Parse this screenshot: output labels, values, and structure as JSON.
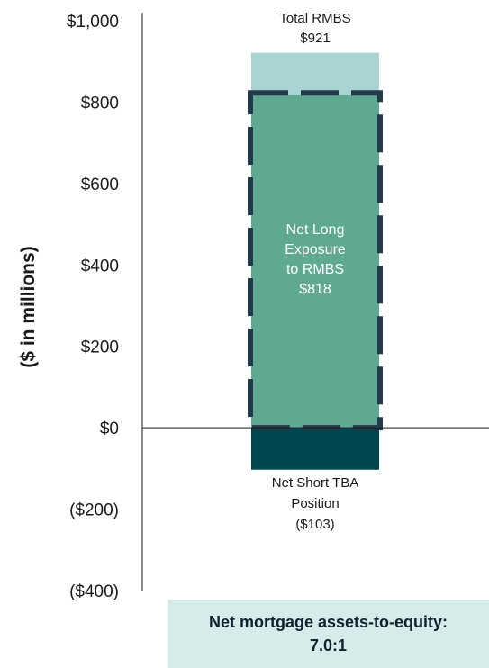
{
  "chart_data": {
    "type": "bar",
    "ylabel": "($ in millions)",
    "ylim": [
      -400,
      1000
    ],
    "yticks": [
      {
        "value": 1000,
        "label": "$1,000"
      },
      {
        "value": 800,
        "label": "$800"
      },
      {
        "value": 600,
        "label": "$600"
      },
      {
        "value": 400,
        "label": "$400"
      },
      {
        "value": 200,
        "label": "$200"
      },
      {
        "value": 0,
        "label": "$0"
      },
      {
        "value": -200,
        "label": "($200)"
      },
      {
        "value": -400,
        "label": "($400)"
      }
    ],
    "series": [
      {
        "name": "Total RMBS",
        "value": 921,
        "label_lines": [
          "Total RMBS",
          "$921"
        ],
        "color": "#a8d5d3"
      },
      {
        "name": "Net Long Exposure to RMBS",
        "value": 818,
        "label_lines": [
          "Net Long",
          "Exposure",
          "to RMBS",
          "$818"
        ],
        "color": "#5fa891",
        "outline_color": "#223a4a"
      },
      {
        "name": "Net Short TBA Position",
        "value": -103,
        "label_lines": [
          "Net Short TBA",
          "Position",
          "($103)"
        ],
        "color": "#004650"
      }
    ],
    "grid": false
  },
  "callout": {
    "line1": "Net mortgage assets-to-equity:",
    "line2": "7.0:1"
  }
}
